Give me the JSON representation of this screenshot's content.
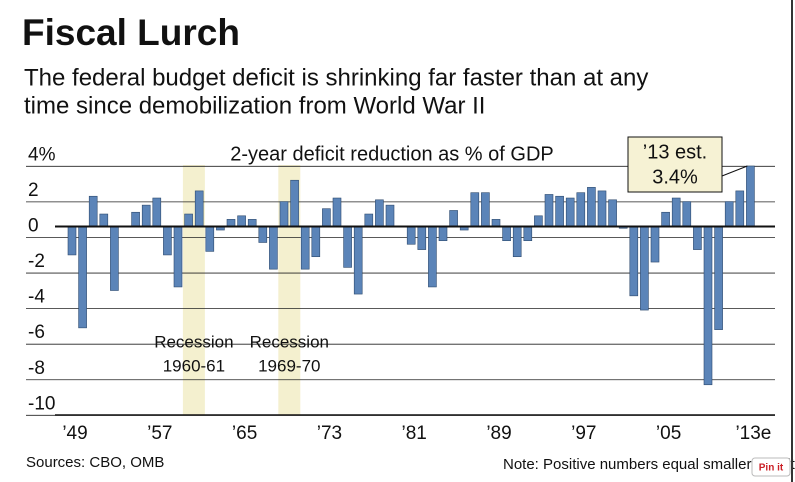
{
  "chart_data": {
    "type": "bar",
    "title": "Fiscal Lurch",
    "subtitle": [
      "The federal budget deficit is shrinking far faster than at any",
      "time since demobilization from World War II"
    ],
    "chart_title": "2-year deficit reduction as % of GDP",
    "categories": [
      "’49",
      null,
      null,
      null,
      null,
      null,
      null,
      null,
      "’57",
      null,
      null,
      null,
      null,
      null,
      null,
      null,
      "’65",
      null,
      null,
      null,
      null,
      null,
      null,
      null,
      "’73",
      null,
      null,
      null,
      null,
      null,
      null,
      null,
      "’81",
      null,
      null,
      null,
      null,
      null,
      null,
      null,
      "’89",
      null,
      null,
      null,
      null,
      null,
      null,
      null,
      "’97",
      null,
      null,
      null,
      null,
      null,
      null,
      null,
      "’05",
      null,
      null,
      null,
      null,
      null,
      null,
      null,
      "’13e"
    ],
    "values": [
      -1.6,
      -5.7,
      1.7,
      0.7,
      -3.6,
      0,
      0.8,
      1.2,
      1.6,
      -1.6,
      -3.4,
      0.7,
      2.0,
      -1.4,
      -0.2,
      0.4,
      0.6,
      0.4,
      -0.9,
      -2.4,
      1.4,
      2.6,
      -2.4,
      -1.7,
      1.0,
      1.6,
      -2.3,
      -3.8,
      0.7,
      1.5,
      1.2,
      0,
      -1.0,
      -1.3,
      -3.4,
      -0.8,
      0.9,
      -0.2,
      1.9,
      1.9,
      0.4,
      -0.8,
      -1.7,
      -0.8,
      0.6,
      1.8,
      1.7,
      1.6,
      1.9,
      2.2,
      2.0,
      1.5,
      -0.1,
      -3.9,
      -4.7,
      -2.0,
      0.8,
      1.6,
      1.4,
      -1.3,
      -8.9,
      -5.8,
      1.4,
      2.0,
      3.4
    ],
    "color": "#5b84b8",
    "ylim": [
      -10.6,
      4.3
    ],
    "yticks": [
      {
        "value": 4,
        "label": "4%"
      },
      2,
      0,
      -2,
      -4,
      -6,
      -8,
      -10
    ],
    "grid": true,
    "recessions": [
      {
        "label": "Recession",
        "period": "1960-61"
      },
      {
        "label": "Recession",
        "period": "1969-70"
      }
    ],
    "callout": {
      "label": "’13 est.",
      "value_label": "3.4%"
    },
    "source": "Sources: CBO, OMB",
    "note": "Note: Positive numbers equal smaller deficits",
    "pin_button": "Pin it"
  }
}
